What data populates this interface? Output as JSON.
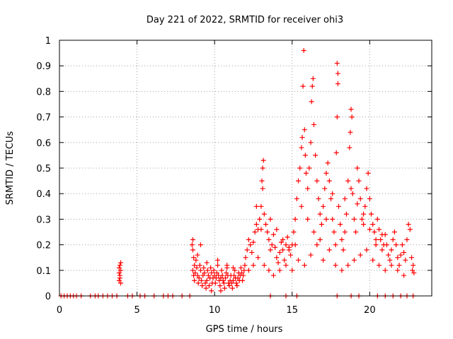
{
  "chart_data": {
    "type": "scatter",
    "title": "Day 221 of 2022, SRMTID for receiver ohi3",
    "xlabel": "GPS time / hours",
    "ylabel": "SRMTID / TECUs",
    "xlim": [
      0,
      24
    ],
    "ylim": [
      0,
      1
    ],
    "xticks": [
      0,
      5,
      10,
      15,
      20
    ],
    "yticks": [
      0,
      0.1,
      0.2,
      0.3,
      0.4,
      0.5,
      0.6,
      0.7,
      0.8,
      0.9,
      1
    ],
    "ytick_labels": [
      "0",
      "0.1",
      "0.2",
      "0.3",
      "0.4",
      "0.5",
      "0.6",
      "0.7",
      "0.8",
      "0.9",
      "1"
    ],
    "grid": true,
    "marker": "+",
    "color": "#ff0000",
    "series": [
      {
        "name": "SRMTID",
        "points": [
          [
            0.1,
            0.0
          ],
          [
            0.3,
            0.0
          ],
          [
            0.5,
            0.0
          ],
          [
            0.7,
            0.0
          ],
          [
            0.9,
            0.0
          ],
          [
            1.1,
            0.0
          ],
          [
            1.4,
            0.0
          ],
          [
            2.0,
            0.0
          ],
          [
            2.3,
            0.0
          ],
          [
            2.5,
            0.0
          ],
          [
            2.8,
            0.0
          ],
          [
            3.1,
            0.0
          ],
          [
            3.4,
            0.0
          ],
          [
            3.7,
            0.0
          ],
          [
            4.4,
            0.0
          ],
          [
            4.7,
            0.0
          ],
          [
            5.2,
            0.0
          ],
          [
            5.5,
            0.0
          ],
          [
            6.1,
            0.0
          ],
          [
            6.7,
            0.0
          ],
          [
            7.0,
            0.0
          ],
          [
            7.3,
            0.0
          ],
          [
            7.9,
            0.0
          ],
          [
            8.4,
            0.0
          ],
          [
            3.85,
            0.06
          ],
          [
            3.9,
            0.08
          ],
          [
            3.95,
            0.1
          ],
          [
            3.9,
            0.12
          ],
          [
            3.85,
            0.11
          ],
          [
            3.95,
            0.13
          ],
          [
            3.9,
            0.07
          ],
          [
            3.95,
            0.05
          ],
          [
            3.85,
            0.09
          ],
          [
            8.55,
            0.2
          ],
          [
            8.6,
            0.18
          ],
          [
            8.65,
            0.15
          ],
          [
            8.7,
            0.12
          ],
          [
            8.6,
            0.1
          ],
          [
            8.65,
            0.08
          ],
          [
            8.7,
            0.06
          ],
          [
            8.75,
            0.09
          ],
          [
            8.8,
            0.14
          ],
          [
            8.85,
            0.11
          ],
          [
            8.9,
            0.08
          ],
          [
            8.95,
            0.05
          ],
          [
            9.0,
            0.07
          ],
          [
            9.05,
            0.12
          ],
          [
            9.1,
            0.1
          ],
          [
            9.15,
            0.06
          ],
          [
            9.2,
            0.04
          ],
          [
            9.25,
            0.08
          ],
          [
            9.3,
            0.11
          ],
          [
            9.35,
            0.09
          ],
          [
            9.4,
            0.05
          ],
          [
            9.45,
            0.03
          ],
          [
            9.5,
            0.06
          ],
          [
            9.55,
            0.1
          ],
          [
            9.6,
            0.08
          ],
          [
            9.65,
            0.04
          ],
          [
            9.7,
            0.07
          ],
          [
            9.75,
            0.11
          ],
          [
            9.8,
            0.09
          ],
          [
            9.85,
            0.05
          ],
          [
            9.9,
            0.07
          ],
          [
            9.95,
            0.1
          ],
          [
            10.0,
            0.08
          ],
          [
            10.05,
            0.05
          ],
          [
            10.1,
            0.07
          ],
          [
            10.15,
            0.09
          ],
          [
            10.2,
            0.12
          ],
          [
            10.25,
            0.08
          ],
          [
            10.3,
            0.06
          ],
          [
            10.35,
            0.04
          ],
          [
            10.4,
            0.07
          ],
          [
            10.45,
            0.1
          ],
          [
            10.5,
            0.08
          ],
          [
            10.55,
            0.06
          ],
          [
            10.6,
            0.05
          ],
          [
            10.65,
            0.03
          ],
          [
            10.7,
            0.07
          ],
          [
            10.75,
            0.09
          ],
          [
            10.8,
            0.11
          ],
          [
            10.85,
            0.08
          ],
          [
            10.9,
            0.05
          ],
          [
            10.95,
            0.04
          ],
          [
            11.0,
            0.06
          ],
          [
            11.05,
            0.08
          ],
          [
            11.1,
            0.05
          ],
          [
            11.15,
            0.03
          ],
          [
            11.2,
            0.06
          ],
          [
            11.25,
            0.08
          ],
          [
            11.3,
            0.1
          ],
          [
            11.35,
            0.07
          ],
          [
            11.4,
            0.05
          ],
          [
            11.45,
            0.04
          ],
          [
            11.5,
            0.07
          ],
          [
            11.55,
            0.09
          ],
          [
            11.6,
            0.06
          ],
          [
            11.65,
            0.08
          ],
          [
            11.7,
            0.11
          ],
          [
            11.75,
            0.09
          ],
          [
            11.8,
            0.06
          ],
          [
            11.85,
            0.08
          ],
          [
            11.9,
            0.1
          ],
          [
            11.95,
            0.12
          ],
          [
            9.1,
            0.2
          ],
          [
            8.9,
            0.16
          ],
          [
            9.5,
            0.13
          ],
          [
            10.2,
            0.14
          ],
          [
            10.8,
            0.12
          ],
          [
            11.2,
            0.11
          ],
          [
            9.8,
            0.02
          ],
          [
            10.4,
            0.02
          ],
          [
            8.6,
            0.22
          ],
          [
            12.0,
            0.15
          ],
          [
            12.1,
            0.18
          ],
          [
            12.2,
            0.22
          ],
          [
            12.3,
            0.2
          ],
          [
            12.4,
            0.17
          ],
          [
            12.5,
            0.21
          ],
          [
            12.6,
            0.25
          ],
          [
            12.7,
            0.28
          ],
          [
            12.8,
            0.26
          ],
          [
            12.9,
            0.3
          ],
          [
            13.0,
            0.35
          ],
          [
            13.05,
            0.45
          ],
          [
            13.1,
            0.5
          ],
          [
            13.15,
            0.53
          ],
          [
            13.1,
            0.42
          ],
          [
            13.2,
            0.32
          ],
          [
            13.3,
            0.28
          ],
          [
            13.4,
            0.25
          ],
          [
            13.5,
            0.22
          ],
          [
            13.6,
            0.18
          ],
          [
            13.7,
            0.2
          ],
          [
            13.8,
            0.24
          ],
          [
            13.9,
            0.19
          ],
          [
            14.0,
            0.15
          ],
          [
            14.1,
            0.13
          ],
          [
            14.2,
            0.17
          ],
          [
            14.3,
            0.21
          ],
          [
            14.4,
            0.18
          ],
          [
            14.5,
            0.14
          ],
          [
            14.6,
            0.2
          ],
          [
            14.7,
            0.23
          ],
          [
            14.8,
            0.19
          ],
          [
            14.9,
            0.16
          ],
          [
            15.0,
            0.2
          ],
          [
            15.1,
            0.25
          ],
          [
            15.2,
            0.3
          ],
          [
            15.3,
            0.38
          ],
          [
            15.4,
            0.45
          ],
          [
            15.5,
            0.5
          ],
          [
            15.6,
            0.58
          ],
          [
            15.65,
            0.62
          ],
          [
            15.7,
            0.82
          ],
          [
            15.75,
            0.96
          ],
          [
            15.8,
            0.65
          ],
          [
            15.85,
            0.55
          ],
          [
            15.9,
            0.48
          ],
          [
            16.0,
            0.42
          ],
          [
            16.1,
            0.5
          ],
          [
            16.2,
            0.6
          ],
          [
            16.25,
            0.76
          ],
          [
            16.3,
            0.82
          ],
          [
            16.35,
            0.85
          ],
          [
            16.4,
            0.67
          ],
          [
            16.5,
            0.55
          ],
          [
            16.6,
            0.45
          ],
          [
            16.7,
            0.38
          ],
          [
            16.8,
            0.32
          ],
          [
            16.9,
            0.28
          ],
          [
            17.0,
            0.35
          ],
          [
            17.1,
            0.42
          ],
          [
            17.2,
            0.48
          ],
          [
            17.3,
            0.52
          ],
          [
            17.4,
            0.45
          ],
          [
            17.5,
            0.38
          ],
          [
            17.6,
            0.3
          ],
          [
            17.7,
            0.25
          ],
          [
            17.8,
            0.2
          ],
          [
            17.85,
            0.56
          ],
          [
            17.9,
            0.7
          ],
          [
            17.95,
            0.83
          ],
          [
            17.9,
            0.91
          ],
          [
            17.95,
            0.87
          ],
          [
            18.0,
            0.35
          ],
          [
            18.1,
            0.28
          ],
          [
            18.2,
            0.22
          ],
          [
            18.3,
            0.18
          ],
          [
            18.4,
            0.25
          ],
          [
            18.5,
            0.32
          ],
          [
            18.6,
            0.45
          ],
          [
            18.7,
            0.58
          ],
          [
            18.75,
            0.64
          ],
          [
            18.8,
            0.73
          ],
          [
            18.85,
            0.7
          ],
          [
            18.9,
            0.4
          ],
          [
            19.0,
            0.3
          ],
          [
            19.1,
            0.25
          ],
          [
            19.2,
            0.5
          ],
          [
            19.3,
            0.45
          ],
          [
            19.4,
            0.38
          ],
          [
            19.5,
            0.3
          ],
          [
            19.6,
            0.28
          ],
          [
            19.7,
            0.35
          ],
          [
            19.8,
            0.42
          ],
          [
            19.9,
            0.48
          ],
          [
            20.0,
            0.38
          ],
          [
            20.1,
            0.32
          ],
          [
            20.2,
            0.28
          ],
          [
            20.3,
            0.25
          ],
          [
            20.4,
            0.22
          ],
          [
            20.5,
            0.3
          ],
          [
            20.6,
            0.26
          ],
          [
            20.7,
            0.22
          ],
          [
            20.8,
            0.18
          ],
          [
            20.9,
            0.2
          ],
          [
            21.0,
            0.24
          ],
          [
            21.1,
            0.2
          ],
          [
            21.2,
            0.16
          ],
          [
            21.3,
            0.14
          ],
          [
            21.4,
            0.18
          ],
          [
            21.5,
            0.22
          ],
          [
            21.6,
            0.25
          ],
          [
            21.7,
            0.2
          ],
          [
            21.8,
            0.15
          ],
          [
            21.9,
            0.12
          ],
          [
            22.0,
            0.16
          ],
          [
            22.1,
            0.2
          ],
          [
            22.2,
            0.17
          ],
          [
            22.3,
            0.14
          ],
          [
            22.4,
            0.22
          ],
          [
            22.5,
            0.28
          ],
          [
            22.6,
            0.26
          ],
          [
            22.7,
            0.15
          ],
          [
            22.75,
            0.1
          ],
          [
            22.8,
            0.12
          ],
          [
            22.85,
            0.09
          ],
          [
            12.2,
            0.1
          ],
          [
            12.5,
            0.12
          ],
          [
            12.8,
            0.15
          ],
          [
            13.2,
            0.12
          ],
          [
            13.5,
            0.1
          ],
          [
            13.8,
            0.08
          ],
          [
            14.2,
            0.1
          ],
          [
            14.6,
            0.12
          ],
          [
            15.0,
            0.1
          ],
          [
            15.4,
            0.14
          ],
          [
            15.8,
            0.12
          ],
          [
            16.2,
            0.16
          ],
          [
            16.6,
            0.2
          ],
          [
            17.0,
            0.14
          ],
          [
            17.4,
            0.18
          ],
          [
            17.8,
            0.12
          ],
          [
            18.2,
            0.1
          ],
          [
            18.6,
            0.12
          ],
          [
            19.0,
            0.14
          ],
          [
            19.4,
            0.16
          ],
          [
            19.8,
            0.18
          ],
          [
            20.2,
            0.14
          ],
          [
            20.6,
            0.12
          ],
          [
            21.0,
            0.1
          ],
          [
            21.4,
            0.12
          ],
          [
            21.8,
            0.1
          ],
          [
            22.2,
            0.08
          ],
          [
            15.2,
            0.2
          ],
          [
            15.6,
            0.35
          ],
          [
            16.0,
            0.3
          ],
          [
            16.4,
            0.25
          ],
          [
            16.8,
            0.22
          ],
          [
            17.2,
            0.3
          ],
          [
            17.6,
            0.4
          ],
          [
            18.4,
            0.38
          ],
          [
            18.8,
            0.42
          ],
          [
            19.2,
            0.36
          ],
          [
            19.6,
            0.32
          ],
          [
            20.0,
            0.26
          ],
          [
            20.4,
            0.2
          ],
          [
            20.8,
            0.24
          ],
          [
            13.6,
            0.3
          ],
          [
            14.0,
            0.26
          ],
          [
            14.4,
            0.22
          ],
          [
            14.8,
            0.18
          ],
          [
            12.7,
            0.35
          ],
          [
            13.0,
            0.26
          ],
          [
            13.6,
            0.0
          ],
          [
            14.6,
            0.0
          ],
          [
            15.3,
            0.0
          ],
          [
            17.9,
            0.0
          ],
          [
            18.8,
            0.0
          ],
          [
            19.3,
            0.0
          ],
          [
            20.5,
            0.0
          ],
          [
            21.0,
            0.0
          ],
          [
            21.5,
            0.0
          ],
          [
            22.0,
            0.0
          ],
          [
            22.4,
            0.0
          ],
          [
            22.8,
            0.0
          ]
        ]
      }
    ]
  }
}
